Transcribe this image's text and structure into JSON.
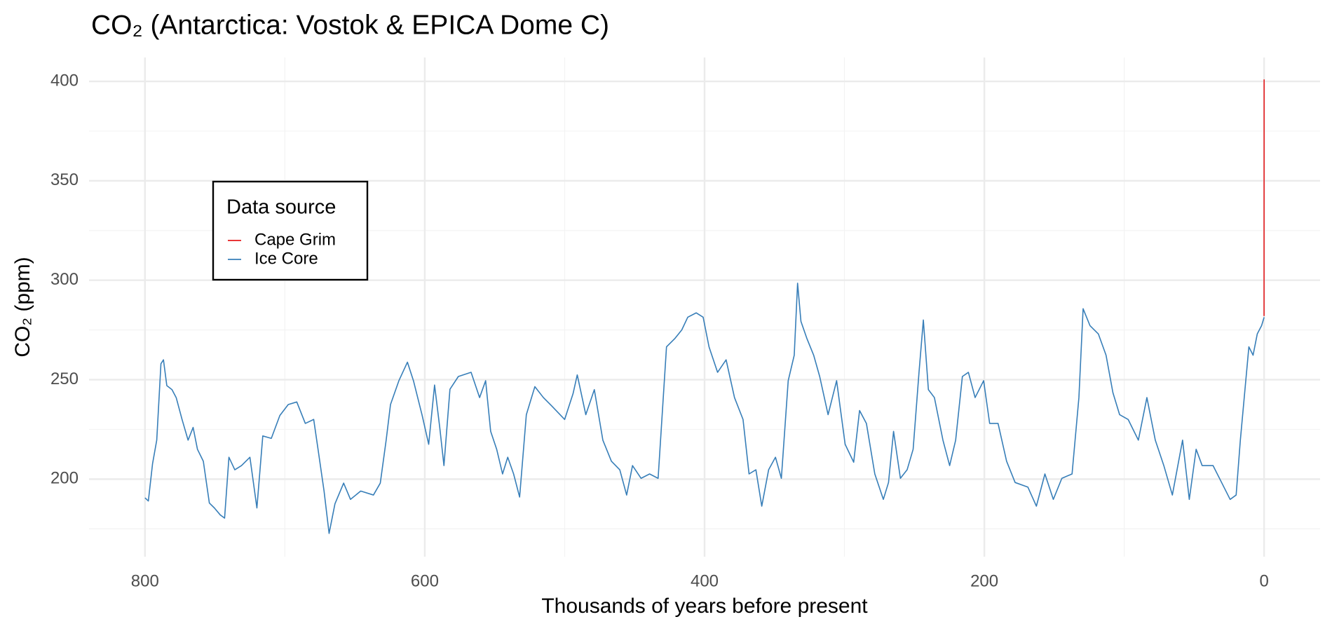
{
  "chart_data": {
    "type": "line",
    "title": "CO₂ (Antarctica: Vostok & EPICA Dome C)",
    "x_label": "Thousands of years before present",
    "y_label": "CO₂ (ppm)",
    "legend_title": "Data source",
    "legend": "upper left",
    "grid": true,
    "xlim": [
      840,
      -40
    ],
    "xticks": [
      800,
      600,
      400,
      200,
      0
    ],
    "x_minor_grid": [
      700,
      500,
      300,
      100
    ],
    "ylim": [
      161,
      412
    ],
    "yticks": [
      200,
      250,
      300,
      350,
      400
    ],
    "y_minor_grid": [
      175,
      225,
      275,
      325,
      375
    ],
    "series": [
      {
        "name": "Cape Grim",
        "color": "#e41a1c",
        "x": [
          0.05,
          0.04,
          0.03,
          0.02,
          0.01,
          0
        ],
        "values": [
          282,
          330,
          340,
          355,
          370,
          401
        ]
      },
      {
        "name": "Ice Core",
        "color": "#377eb8",
        "x": [
          800,
          797.6,
          794.6,
          791.6,
          788.6,
          786.8,
          784.4,
          780.7,
          777.7,
          773.5,
          769.2,
          765.6,
          762.5,
          758.3,
          754,
          750.4,
          746.2,
          743.1,
          740,
          735.8,
          731,
          725,
          720,
          715.8,
          709.7,
          703.6,
          697.6,
          691.5,
          685.4,
          679.4,
          676.3,
          672,
          668.4,
          664.2,
          658,
          653.1,
          645.8,
          636.7,
          631.8,
          627.6,
          624.5,
          618.5,
          612.4,
          608.1,
          602,
          597.2,
          593,
          589.3,
          586.3,
          582,
          576,
          566.9,
          560.8,
          556.5,
          552.9,
          548.6,
          544.4,
          540.7,
          536.5,
          532.2,
          527.4,
          521.3,
          515.2,
          509.1,
          500,
          494,
          491,
          484.9,
          478.8,
          472.7,
          466.6,
          460.6,
          455.7,
          451.5,
          445.4,
          439.3,
          433.2,
          427.2,
          421.1,
          416.3,
          412,
          406,
          401,
          396.8,
          390.7,
          384.6,
          378.6,
          372.5,
          368.2,
          363.3,
          359.1,
          354.2,
          349.3,
          345.1,
          340.2,
          335.9,
          333.5,
          331.1,
          326.9,
          322,
          317.7,
          311.7,
          305.6,
          299.5,
          293.4,
          289.2,
          284.3,
          278.3,
          272.2,
          268.5,
          264.9,
          260,
          255.2,
          250.9,
          246.7,
          243.6,
          240,
          235.7,
          229.6,
          224.8,
          220.5,
          215.7,
          211.4,
          206.6,
          200.5,
          196.2,
          190.2,
          184.1,
          178,
          168.9,
          162.8,
          156.7,
          150.7,
          144.6,
          137.3,
          132.4,
          129.4,
          124.5,
          118.5,
          113,
          108.1,
          103.3,
          97.2,
          89.9,
          83.8,
          77.8,
          71.7,
          65.6,
          58.3,
          53.5,
          48.6,
          44.3,
          36.5,
          30.4,
          24.3,
          20,
          17,
          13.4,
          10.9,
          7.9,
          4.9,
          1.8,
          0
        ],
        "values": [
          190.6,
          189,
          207.7,
          219.6,
          258,
          260,
          247,
          245,
          241,
          230,
          219.6,
          226,
          215,
          209,
          188,
          185.5,
          182,
          180.4,
          211,
          204.7,
          206.8,
          211,
          185.5,
          221.7,
          220.5,
          232,
          237.5,
          238.8,
          228,
          230,
          215,
          194,
          172.7,
          187.6,
          198,
          189.8,
          194,
          192,
          198,
          219.6,
          237.5,
          249.5,
          258.8,
          249.5,
          232.4,
          217.5,
          247.3,
          226,
          206.8,
          245.2,
          251.6,
          253.7,
          241,
          249.5,
          224,
          215,
          202.6,
          211,
          202.6,
          191,
          232.4,
          246.5,
          241,
          236.7,
          230,
          243,
          252.4,
          232.4,
          245,
          219.6,
          209,
          204.7,
          192,
          206.8,
          200.4,
          202.6,
          200.4,
          266.5,
          270.8,
          275,
          281.4,
          283.6,
          281.4,
          266.5,
          253.7,
          260,
          241,
          230,
          202.6,
          204.7,
          186.4,
          204.7,
          211,
          200.4,
          249.5,
          262.3,
          298.5,
          279.3,
          270.8,
          262.3,
          251.6,
          232.4,
          249.5,
          217.5,
          208.5,
          234.5,
          228,
          202.6,
          189.8,
          198.3,
          224,
          200.4,
          204.7,
          215,
          253.7,
          280,
          245,
          241,
          219.6,
          206.8,
          219.6,
          251.6,
          253.7,
          241,
          249.5,
          228,
          228,
          209,
          198.3,
          196,
          186.4,
          202.6,
          189.8,
          200.4,
          202.6,
          241,
          285.7,
          277.2,
          273,
          262.3,
          243.5,
          232.4,
          230,
          219.6,
          241,
          219.6,
          206.8,
          192,
          219.6,
          189.8,
          215,
          206.8,
          206.8,
          198.3,
          189.8,
          192,
          219.6,
          247.3,
          266.5,
          262.3,
          273,
          277.2,
          281.4
        ]
      }
    ]
  }
}
